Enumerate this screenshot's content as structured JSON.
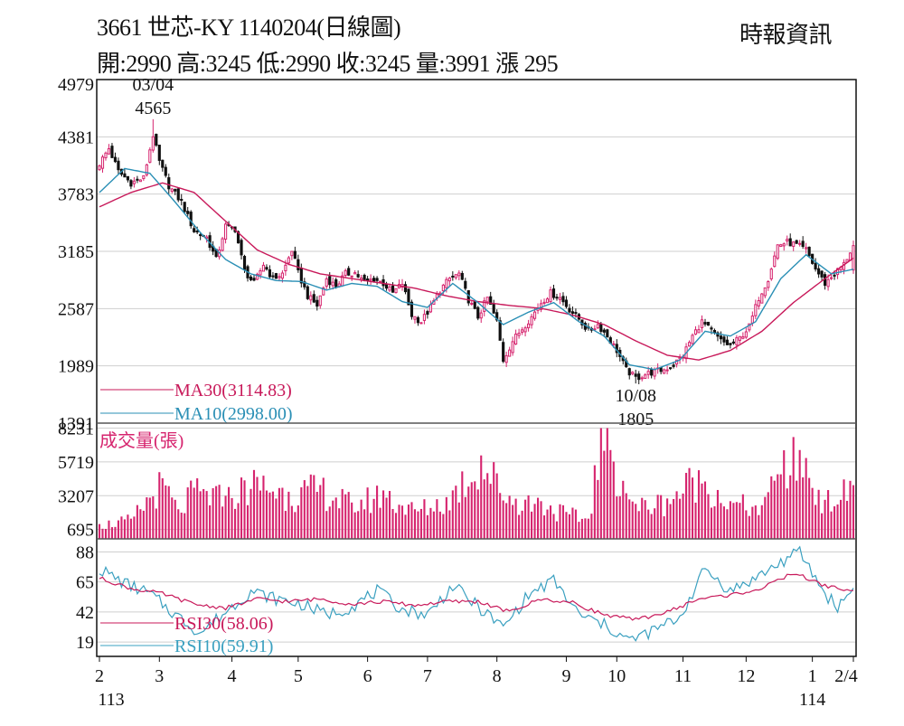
{
  "header": {
    "title": "3661  世芯-KY 1140204(日線圖)",
    "ohlc_line": "開:2990 高:3245 低:2990 收:3245 量:3991 漲 295",
    "source": "時報資訊"
  },
  "colors": {
    "up": "#d6246e",
    "down": "#111111",
    "ma30": "#c8195a",
    "ma10": "#2a8fb5",
    "volume": "#d6246e",
    "rsi30": "#c8195a",
    "rsi10": "#3aa0c0",
    "grid": "#cfcfcf"
  },
  "chart_data": {
    "type": "candlestick",
    "price": {
      "yticks": [
        4979,
        4381,
        3783,
        3185,
        2587,
        1989,
        1391
      ],
      "ylim": [
        1391,
        4979
      ],
      "high_label": {
        "date": "03/04",
        "value": "4565"
      },
      "low_label": {
        "date": "10/08",
        "value": "1805"
      },
      "legend": [
        {
          "key": "ma30",
          "label": "MA30(3114.83)"
        },
        {
          "key": "ma10",
          "label": "MA10(2998.00)"
        }
      ],
      "close_path": [
        [
          0,
          4100
        ],
        [
          3,
          4260
        ],
        [
          6,
          4020
        ],
        [
          10,
          3900
        ],
        [
          14,
          3950
        ],
        [
          17,
          4400
        ],
        [
          19,
          4120
        ],
        [
          22,
          3870
        ],
        [
          26,
          3700
        ],
        [
          30,
          3400
        ],
        [
          34,
          3330
        ],
        [
          37,
          3100
        ],
        [
          40,
          3450
        ],
        [
          43,
          3420
        ],
        [
          46,
          2980
        ],
        [
          49,
          2850
        ],
        [
          52,
          3050
        ],
        [
          55,
          2900
        ],
        [
          58,
          2950
        ],
        [
          61,
          3200
        ],
        [
          63,
          2960
        ],
        [
          66,
          2720
        ],
        [
          69,
          2620
        ],
        [
          72,
          2900
        ],
        [
          75,
          2820
        ],
        [
          78,
          2950
        ],
        [
          81,
          2960
        ],
        [
          84,
          2860
        ],
        [
          87,
          2900
        ],
        [
          90,
          2850
        ],
        [
          93,
          2750
        ],
        [
          96,
          2850
        ],
        [
          99,
          2520
        ],
        [
          102,
          2450
        ],
        [
          105,
          2600
        ],
        [
          108,
          2780
        ],
        [
          111,
          2900
        ],
        [
          114,
          2950
        ],
        [
          117,
          2680
        ],
        [
          120,
          2500
        ],
        [
          123,
          2700
        ],
        [
          126,
          2450
        ],
        [
          128,
          2050
        ],
        [
          131,
          2250
        ],
        [
          134,
          2380
        ],
        [
          137,
          2500
        ],
        [
          140,
          2650
        ],
        [
          143,
          2750
        ],
        [
          146,
          2700
        ],
        [
          149,
          2580
        ],
        [
          152,
          2480
        ],
        [
          155,
          2350
        ],
        [
          158,
          2420
        ],
        [
          161,
          2300
        ],
        [
          164,
          2150
        ],
        [
          167,
          1950
        ],
        [
          170,
          1860
        ],
        [
          173,
          1900
        ],
        [
          176,
          1930
        ],
        [
          179,
          1950
        ],
        [
          182,
          2000
        ],
        [
          185,
          2100
        ],
        [
          188,
          2300
        ],
        [
          191,
          2450
        ],
        [
          194,
          2350
        ],
        [
          197,
          2250
        ],
        [
          200,
          2200
        ],
        [
          203,
          2280
        ],
        [
          206,
          2400
        ],
        [
          209,
          2700
        ],
        [
          212,
          2900
        ],
        [
          215,
          3250
        ],
        [
          218,
          3280
        ],
        [
          221,
          3250
        ],
        [
          224,
          3200
        ],
        [
          227,
          3000
        ],
        [
          230,
          2850
        ],
        [
          233,
          2950
        ],
        [
          236,
          3050
        ],
        [
          239,
          3250
        ]
      ],
      "ma30_path": [
        [
          0,
          3650
        ],
        [
          10,
          3800
        ],
        [
          20,
          3900
        ],
        [
          30,
          3800
        ],
        [
          40,
          3500
        ],
        [
          50,
          3200
        ],
        [
          60,
          3050
        ],
        [
          70,
          2950
        ],
        [
          80,
          2900
        ],
        [
          90,
          2850
        ],
        [
          100,
          2800
        ],
        [
          110,
          2720
        ],
        [
          120,
          2660
        ],
        [
          130,
          2620
        ],
        [
          140,
          2590
        ],
        [
          150,
          2520
        ],
        [
          160,
          2420
        ],
        [
          170,
          2250
        ],
        [
          180,
          2100
        ],
        [
          190,
          2050
        ],
        [
          200,
          2150
        ],
        [
          210,
          2350
        ],
        [
          220,
          2650
        ],
        [
          230,
          2900
        ],
        [
          239,
          3114.83
        ]
      ],
      "ma10_path": [
        [
          0,
          3800
        ],
        [
          8,
          4050
        ],
        [
          16,
          4000
        ],
        [
          24,
          3700
        ],
        [
          32,
          3380
        ],
        [
          40,
          3100
        ],
        [
          48,
          2950
        ],
        [
          56,
          2880
        ],
        [
          64,
          2870
        ],
        [
          72,
          2780
        ],
        [
          80,
          2850
        ],
        [
          88,
          2820
        ],
        [
          96,
          2660
        ],
        [
          104,
          2600
        ],
        [
          112,
          2850
        ],
        [
          120,
          2650
        ],
        [
          128,
          2420
        ],
        [
          136,
          2550
        ],
        [
          144,
          2650
        ],
        [
          152,
          2450
        ],
        [
          160,
          2300
        ],
        [
          168,
          2000
        ],
        [
          176,
          1950
        ],
        [
          184,
          2050
        ],
        [
          192,
          2350
        ],
        [
          200,
          2300
        ],
        [
          208,
          2450
        ],
        [
          216,
          2900
        ],
        [
          224,
          3150
        ],
        [
          232,
          2950
        ],
        [
          239,
          2998
        ]
      ]
    },
    "volume": {
      "title": "成交量(張)",
      "yticks": [
        8231,
        5719,
        3207,
        695
      ],
      "ylim": [
        0,
        8600
      ],
      "base": 2200,
      "peaks": [
        [
          0,
          1100
        ],
        [
          10,
          1500
        ],
        [
          20,
          4500
        ],
        [
          25,
          2200
        ],
        [
          30,
          3800
        ],
        [
          40,
          3200
        ],
        [
          50,
          4600
        ],
        [
          60,
          3500
        ],
        [
          70,
          4000
        ],
        [
          80,
          2700
        ],
        [
          90,
          3600
        ],
        [
          100,
          2200
        ],
        [
          110,
          3100
        ],
        [
          121,
          6200
        ],
        [
          130,
          3200
        ],
        [
          140,
          2800
        ],
        [
          148,
          2000
        ],
        [
          155,
          1500
        ],
        [
          159,
          8231
        ],
        [
          170,
          2600
        ],
        [
          180,
          3000
        ],
        [
          190,
          5100
        ],
        [
          200,
          2800
        ],
        [
          210,
          2500
        ],
        [
          215,
          4800
        ],
        [
          222,
          6600
        ],
        [
          230,
          2900
        ],
        [
          239,
          3991
        ]
      ]
    },
    "rsi": {
      "yticks": [
        88,
        65,
        42,
        19
      ],
      "ylim": [
        8,
        98
      ],
      "legend": [
        {
          "key": "rsi30",
          "label": "RSI30(58.06)"
        },
        {
          "key": "rsi10",
          "label": "RSI10(59.91)"
        }
      ],
      "rsi30_path": [
        [
          0,
          68
        ],
        [
          10,
          60
        ],
        [
          20,
          56
        ],
        [
          30,
          48
        ],
        [
          40,
          45
        ],
        [
          50,
          52
        ],
        [
          60,
          50
        ],
        [
          70,
          52
        ],
        [
          80,
          48
        ],
        [
          90,
          50
        ],
        [
          100,
          47
        ],
        [
          110,
          50
        ],
        [
          120,
          50
        ],
        [
          130,
          42
        ],
        [
          140,
          52
        ],
        [
          150,
          49
        ],
        [
          160,
          40
        ],
        [
          170,
          36
        ],
        [
          180,
          42
        ],
        [
          190,
          52
        ],
        [
          200,
          55
        ],
        [
          210,
          60
        ],
        [
          220,
          72
        ],
        [
          230,
          62
        ],
        [
          239,
          58.06
        ]
      ],
      "rsi10_path": [
        [
          0,
          75
        ],
        [
          8,
          64
        ],
        [
          16,
          56
        ],
        [
          24,
          40
        ],
        [
          32,
          26
        ],
        [
          40,
          42
        ],
        [
          48,
          58
        ],
        [
          56,
          52
        ],
        [
          64,
          48
        ],
        [
          72,
          40
        ],
        [
          80,
          46
        ],
        [
          88,
          58
        ],
        [
          96,
          44
        ],
        [
          104,
          40
        ],
        [
          112,
          62
        ],
        [
          120,
          46
        ],
        [
          128,
          30
        ],
        [
          136,
          55
        ],
        [
          144,
          66
        ],
        [
          152,
          40
        ],
        [
          160,
          32
        ],
        [
          168,
          20
        ],
        [
          176,
          28
        ],
        [
          184,
          38
        ],
        [
          192,
          75
        ],
        [
          200,
          58
        ],
        [
          208,
          68
        ],
        [
          216,
          80
        ],
        [
          222,
          88
        ],
        [
          230,
          56
        ],
        [
          234,
          46
        ],
        [
          239,
          59.91
        ]
      ]
    },
    "x_axis": {
      "n_days": 240,
      "ticks": [
        {
          "label": "2",
          "day": 0
        },
        {
          "label": "3",
          "day": 19
        },
        {
          "label": "4",
          "day": 42
        },
        {
          "label": "5",
          "day": 63
        },
        {
          "label": "6",
          "day": 85
        },
        {
          "label": "7",
          "day": 104
        },
        {
          "label": "8",
          "day": 126
        },
        {
          "label": "9",
          "day": 148
        },
        {
          "label": "10",
          "day": 164
        },
        {
          "label": "11",
          "day": 185
        },
        {
          "label": "12",
          "day": 205
        },
        {
          "label": "1",
          "day": 226
        },
        {
          "label": "2/4",
          "day": 239
        }
      ],
      "year_labels": [
        {
          "label": "113",
          "day": 0
        },
        {
          "label": "114",
          "day": 226
        }
      ]
    }
  }
}
